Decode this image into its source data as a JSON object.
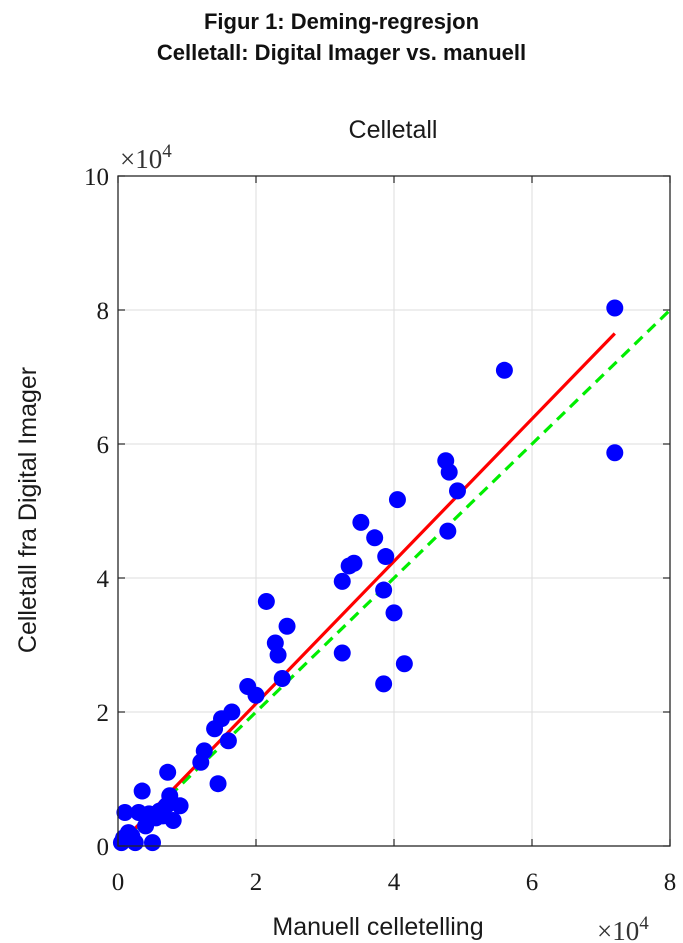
{
  "figure": {
    "title_line1": "Figur 1: Deming-regresjon",
    "title_line2": "Celletall: Digital Imager vs. manuell"
  },
  "chart_data": {
    "type": "scatter",
    "title": "Celletall",
    "xlabel": "Manuell celletelling",
    "ylabel": "Celletall fra Digital Imager",
    "axis_multiplier": {
      "base": "×10",
      "exponent": "4"
    },
    "xlim": [
      0,
      8
    ],
    "ylim": [
      0,
      10
    ],
    "xticks": [
      "0",
      "2",
      "4",
      "6",
      "8"
    ],
    "yticks": [
      "0",
      "2",
      "4",
      "6",
      "8",
      "10"
    ],
    "grid": true,
    "colors": {
      "points": "#0000ff",
      "regression": "#ff0000",
      "identity": "#00ee00"
    },
    "points": [
      [
        0.05,
        0.05
      ],
      [
        0.08,
        0.12
      ],
      [
        0.1,
        0.5
      ],
      [
        0.15,
        0.2
      ],
      [
        0.2,
        0.15
      ],
      [
        0.25,
        0.05
      ],
      [
        0.3,
        0.5
      ],
      [
        0.35,
        0.82
      ],
      [
        0.4,
        0.3
      ],
      [
        0.45,
        0.48
      ],
      [
        0.5,
        0.05
      ],
      [
        0.55,
        0.42
      ],
      [
        0.6,
        0.52
      ],
      [
        0.65,
        0.45
      ],
      [
        0.7,
        0.6
      ],
      [
        0.72,
        1.1
      ],
      [
        0.75,
        0.75
      ],
      [
        0.8,
        0.38
      ],
      [
        0.9,
        0.6
      ],
      [
        1.2,
        1.25
      ],
      [
        1.25,
        1.42
      ],
      [
        1.4,
        1.75
      ],
      [
        1.45,
        0.93
      ],
      [
        1.5,
        1.9
      ],
      [
        1.6,
        1.57
      ],
      [
        1.65,
        2.0
      ],
      [
        1.88,
        2.38
      ],
      [
        2.0,
        2.25
      ],
      [
        2.15,
        3.65
      ],
      [
        2.28,
        3.03
      ],
      [
        2.32,
        2.85
      ],
      [
        2.38,
        2.5
      ],
      [
        2.45,
        3.28
      ],
      [
        3.25,
        2.88
      ],
      [
        3.25,
        3.95
      ],
      [
        3.35,
        4.18
      ],
      [
        3.42,
        4.22
      ],
      [
        3.52,
        4.83
      ],
      [
        3.72,
        4.6
      ],
      [
        3.85,
        3.82
      ],
      [
        3.85,
        2.42
      ],
      [
        3.88,
        4.32
      ],
      [
        4.0,
        3.48
      ],
      [
        4.05,
        5.17
      ],
      [
        4.15,
        2.72
      ],
      [
        4.75,
        5.75
      ],
      [
        4.78,
        4.7
      ],
      [
        4.8,
        5.58
      ],
      [
        4.92,
        5.3
      ],
      [
        5.6,
        7.1
      ],
      [
        7.2,
        8.03
      ],
      [
        7.2,
        5.87
      ]
    ],
    "series": [
      {
        "type": "line",
        "x": [
          0,
          7.2
        ],
        "y": [
          0,
          7.65
        ]
      },
      {
        "type": "line",
        "x": [
          0,
          8
        ],
        "y": [
          0,
          8
        ]
      }
    ]
  }
}
